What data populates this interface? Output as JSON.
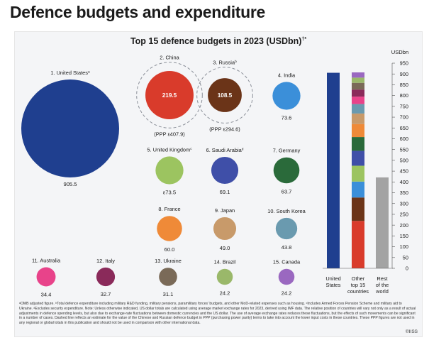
{
  "page_title": "Defence budgets and expenditure",
  "chart_data": [
    {
      "type": "bubble",
      "title": "Top 15 defence budgets in 2023 (USDbn)",
      "title_superscript": "†*",
      "unit": "USDbn",
      "countries": [
        {
          "rank": "1.",
          "name": "United States",
          "note": "a",
          "value": 905.5,
          "label": "905.5",
          "color": "#1f3f8f"
        },
        {
          "rank": "2.",
          "name": "China",
          "note": "",
          "value": 219.5,
          "label": "219.5",
          "color": "#d93b2b",
          "ppp_label": "(PPP ε407.9)",
          "ppp": 407.9
        },
        {
          "rank": "3.",
          "name": "Russia",
          "note": "b",
          "value": 108.5,
          "label": "108.5",
          "color": "#6b3418",
          "ppp_label": "(PPP ε294.6)",
          "ppp": 294.6
        },
        {
          "rank": "4.",
          "name": "India",
          "note": "",
          "value": 73.6,
          "label": "73.6",
          "color": "#3b8fd9"
        },
        {
          "rank": "5.",
          "name": "United Kingdom",
          "note": "c",
          "value": 73.5,
          "label": "ε73.5",
          "color": "#9cc460"
        },
        {
          "rank": "6.",
          "name": "Saudi Arabia",
          "note": "d",
          "value": 69.1,
          "label": "69.1",
          "color": "#3f4fa8"
        },
        {
          "rank": "7.",
          "name": "Germany",
          "note": "",
          "value": 63.7,
          "label": "63.7",
          "color": "#2a6a3a"
        },
        {
          "rank": "8.",
          "name": "France",
          "note": "",
          "value": 60.0,
          "label": "60.0",
          "color": "#ef8a38"
        },
        {
          "rank": "9.",
          "name": "Japan",
          "note": "",
          "value": 49.0,
          "label": "49.0",
          "color": "#c89a6a"
        },
        {
          "rank": "10.",
          "name": "South Korea",
          "note": "",
          "value": 43.8,
          "label": "43.8",
          "color": "#6a9aaf"
        },
        {
          "rank": "11.",
          "name": "Australia",
          "note": "",
          "value": 34.4,
          "label": "34.4",
          "color": "#e8438a"
        },
        {
          "rank": "12.",
          "name": "Italy",
          "note": "",
          "value": 32.7,
          "label": "32.7",
          "color": "#8a2a5a"
        },
        {
          "rank": "13.",
          "name": "Ukraine",
          "note": "",
          "value": 31.1,
          "label": "31.1",
          "color": "#7a6a58"
        },
        {
          "rank": "14.",
          "name": "Brazil",
          "note": "",
          "value": 24.2,
          "label": "24.2",
          "color": "#9ab86a"
        },
        {
          "rank": "15.",
          "name": "Canada",
          "note": "",
          "value": 24.2,
          "label": "24.2",
          "color": "#9a68c0"
        }
      ]
    },
    {
      "type": "stacked-bar",
      "ylabel": "USDbn",
      "ylim": [
        0,
        950
      ],
      "yticks": [
        0,
        50,
        100,
        150,
        200,
        250,
        300,
        350,
        400,
        450,
        500,
        550,
        600,
        650,
        700,
        750,
        800,
        850,
        900,
        950
      ],
      "categories": [
        "United States",
        "Other top 15 countries",
        "Rest of the world"
      ],
      "bars": [
        {
          "category": "United States",
          "label_lines": [
            "United",
            "States"
          ],
          "segments": [
            {
              "name": "United States",
              "value": 905.5,
              "color": "#1f3f8f"
            }
          ]
        },
        {
          "category": "Other top 15 countries",
          "label_lines": [
            "Other",
            "top 15",
            "countries"
          ],
          "segments": [
            {
              "name": "China",
              "value": 219.5,
              "color": "#d93b2b"
            },
            {
              "name": "Russia",
              "value": 108.5,
              "color": "#6b3418"
            },
            {
              "name": "India",
              "value": 73.6,
              "color": "#3b8fd9"
            },
            {
              "name": "United Kingdom",
              "value": 73.5,
              "color": "#9cc460"
            },
            {
              "name": "Saudi Arabia",
              "value": 69.1,
              "color": "#3f4fa8"
            },
            {
              "name": "Germany",
              "value": 63.7,
              "color": "#2a6a3a"
            },
            {
              "name": "France",
              "value": 60.0,
              "color": "#ef8a38"
            },
            {
              "name": "Japan",
              "value": 49.0,
              "color": "#c89a6a"
            },
            {
              "name": "South Korea",
              "value": 43.8,
              "color": "#6a9aaf"
            },
            {
              "name": "Australia",
              "value": 34.4,
              "color": "#e8438a"
            },
            {
              "name": "Italy",
              "value": 32.7,
              "color": "#8a2a5a"
            },
            {
              "name": "Ukraine",
              "value": 31.1,
              "color": "#7a6a58"
            },
            {
              "name": "Brazil",
              "value": 24.2,
              "color": "#9ab86a"
            },
            {
              "name": "Canada",
              "value": 24.2,
              "color": "#9a68c0"
            }
          ]
        },
        {
          "category": "Rest of the world",
          "label_lines": [
            "Rest",
            "of the",
            "world"
          ],
          "segments": [
            {
              "name": "Rest of the world",
              "value": 421,
              "color": "#a3a3a3"
            }
          ]
        }
      ]
    }
  ],
  "footnote": "ᵃOMB adjusted figure. ᵇTotal defence expenditure including military R&D funding, military pensions, paramilitary forces' budgets, and other MoD-related expenses such as housing. ᶜIncludes Armed Forces Pension Scheme and military aid to Ukraine. ᵈExcludes security expenditure. Note: Unless otherwise indicated, US dollar totals are calculated using average market exchange rates for 2023, derived using IMF data. The relative position of countries will vary not only as a result of actual adjustments in defence spending levels, but also due to exchange-rate fluctuations between domestic currencies and the US dollar. The use of average exchange rates reduces these fluctuations, but the effects of such movements can be significant in a number of cases. Dashed line reflects an estimate for the value of the Chinese and Russian defence budget in PPP (purchasing power parity) terms to take into account the lower input costs in these countries. These PPP figures are not used in any regional or global totals in this publication and should not be used in comparison with other international data.",
  "copyright": "©IISS"
}
